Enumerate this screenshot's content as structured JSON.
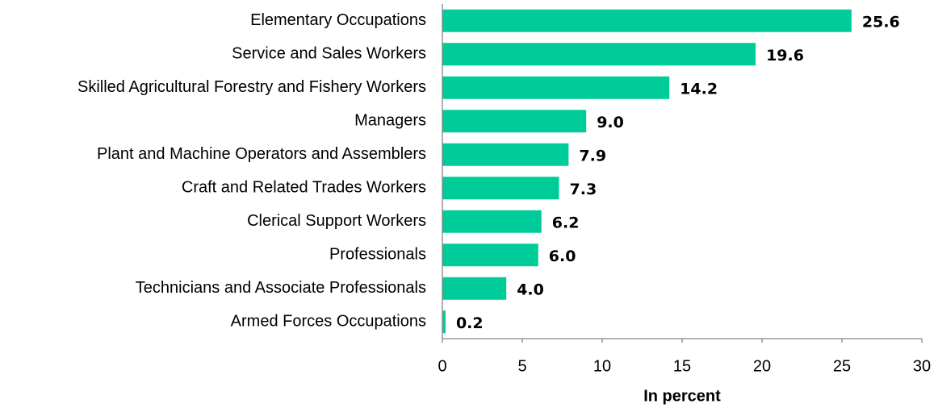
{
  "chart_data": {
    "type": "bar",
    "orientation": "horizontal",
    "categories": [
      "Elementary Occupations",
      "Service and Sales Workers",
      "Skilled Agricultural Forestry and Fishery Workers",
      "Managers",
      "Plant and Machine Operators and Assemblers",
      "Craft and Related Trades Workers",
      "Clerical Support Workers",
      "Professionals",
      "Technicians and Associate Professionals",
      "Armed Forces Occupations"
    ],
    "values": [
      25.6,
      19.6,
      14.2,
      9.0,
      7.9,
      7.3,
      6.2,
      6.0,
      4.0,
      0.2
    ],
    "value_labels": [
      "25.6",
      "19.6",
      "14.2",
      "9.0",
      "7.9",
      "7.3",
      "6.2",
      "6.0",
      "4.0",
      "0.2"
    ],
    "color": "#00cc99",
    "xlabel": "In percent",
    "xlim": [
      0,
      30
    ],
    "xticks": [
      0,
      5,
      10,
      15,
      20,
      25,
      30
    ],
    "grid": false
  }
}
